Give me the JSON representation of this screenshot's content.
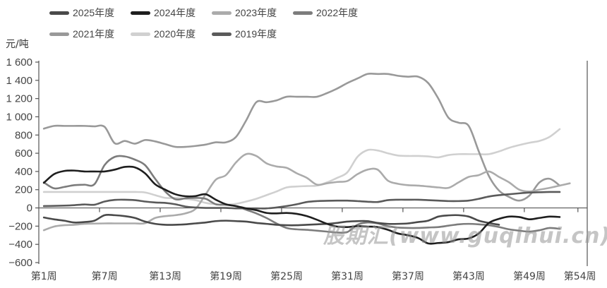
{
  "chart_data": {
    "type": "line",
    "title": "",
    "xlabel": "",
    "ylabel": "元/吨",
    "ylim": [
      -600,
      1600
    ],
    "yticks": [
      1600,
      1400,
      1200,
      1000,
      800,
      600,
      400,
      200,
      0,
      -200,
      -400,
      -600
    ],
    "ytick_labels": [
      "1 600",
      "1 400",
      "1 200",
      "1 000",
      "800",
      "600",
      "400",
      "200",
      "0",
      "−200",
      "−400",
      "−600"
    ],
    "xtick_weeks": [
      1,
      7,
      13,
      19,
      25,
      31,
      37,
      43,
      49,
      54
    ],
    "xtick_labels": [
      "第1周",
      "第7周",
      "第13周",
      "第19周",
      "第25周",
      "第31周",
      "第37周",
      "第43周",
      "第49周",
      "第54周"
    ],
    "grid": false,
    "legend_position": "top",
    "series": [
      {
        "name": "2025年度",
        "color": "#4a4a4a",
        "values": [
          -105,
          -125,
          -140,
          -160,
          -155,
          -140,
          -80,
          -80,
          -90,
          -110,
          -150,
          -175,
          -185,
          -185,
          -180,
          -170,
          -160,
          -145,
          -140,
          -145,
          -150,
          -165,
          -175,
          -185,
          -190,
          -190,
          -185,
          -180,
          -175,
          -165,
          -150,
          -145,
          -145,
          -165,
          -175,
          -175,
          -170,
          -155,
          -140,
          -95,
          -82,
          -80,
          -95,
          -140,
          -165,
          -185
        ]
      },
      {
        "name": "2024年度",
        "color": "#1e1e1e",
        "values": [
          275,
          370,
          405,
          410,
          400,
          400,
          400,
          420,
          450,
          445,
          380,
          260,
          200,
          150,
          128,
          130,
          150,
          90,
          40,
          20,
          -5,
          -25,
          -55,
          -60,
          -55,
          -65,
          -90,
          -130,
          -175,
          -205,
          -210,
          -200,
          -205,
          -210,
          -240,
          -280,
          -300,
          -330,
          -390,
          -385,
          -375,
          -345,
          -335,
          -280,
          -165,
          -120,
          -95,
          -100,
          -125,
          -110,
          -95,
          -100
        ]
      },
      {
        "name": "2023年度",
        "color": "#ababab",
        "values": [
          -245,
          -205,
          -190,
          -185,
          -175,
          -172,
          -170,
          -170,
          -170,
          -170,
          -168,
          -110,
          -90,
          -80,
          -60,
          -10,
          150,
          310,
          360,
          500,
          590,
          570,
          490,
          455,
          440,
          380,
          330,
          255,
          270,
          285,
          295,
          370,
          420,
          420,
          300,
          265,
          250,
          245,
          235,
          225,
          220,
          280,
          340,
          360,
          400,
          340,
          280,
          200,
          180,
          200,
          220,
          245,
          270
        ]
      },
      {
        "name": "2022年度",
        "color": "#7c7c7c",
        "values": [
          280,
          215,
          230,
          250,
          255,
          260,
          470,
          560,
          565,
          530,
          470,
          320,
          180,
          95,
          105,
          110,
          100,
          40,
          35,
          20,
          -20,
          -60,
          -110,
          -170,
          -220,
          -235,
          -240,
          -250,
          -260,
          -270,
          -265,
          -185,
          -160,
          -170,
          -200,
          -215,
          -220,
          -220,
          -215,
          -210,
          -195,
          -180,
          -175,
          -180,
          -190,
          -210,
          -235,
          -250,
          -260,
          -245,
          -220,
          -230
        ]
      },
      {
        "name": "2021年度",
        "color": "#999999",
        "values": [
          870,
          900,
          900,
          900,
          900,
          895,
          890,
          710,
          735,
          705,
          745,
          730,
          700,
          670,
          670,
          680,
          695,
          720,
          720,
          780,
          960,
          1160,
          1160,
          1180,
          1220,
          1220,
          1220,
          1220,
          1260,
          1310,
          1370,
          1420,
          1470,
          1470,
          1470,
          1450,
          1440,
          1440,
          1370,
          1200,
          990,
          935,
          900,
          620,
          350,
          190,
          120,
          80,
          135,
          280,
          320,
          245
        ]
      },
      {
        "name": "2020年度",
        "color": "#d0d0d0",
        "values": [
          175,
          175,
          175,
          175,
          175,
          175,
          175,
          175,
          175,
          175,
          170,
          140,
          110,
          110,
          100,
          85,
          55,
          40,
          35,
          45,
          70,
          100,
          140,
          180,
          225,
          235,
          240,
          245,
          280,
          330,
          390,
          560,
          635,
          630,
          600,
          575,
          570,
          570,
          565,
          555,
          580,
          590,
          590,
          590,
          590,
          620,
          660,
          690,
          715,
          735,
          780,
          865
        ]
      },
      {
        "name": "2019年度",
        "color": "#5a5a5a",
        "values": [
          20,
          22,
          25,
          30,
          38,
          35,
          70,
          88,
          90,
          85,
          70,
          60,
          55,
          40,
          15,
          5,
          0,
          0,
          0,
          -5,
          -5,
          -5,
          -5,
          5,
          20,
          40,
          65,
          75,
          78,
          80,
          80,
          75,
          68,
          65,
          85,
          90,
          90,
          90,
          85,
          80,
          75,
          75,
          80,
          100,
          125,
          140,
          150,
          160,
          168,
          172,
          175,
          175
        ]
      }
    ]
  },
  "watermark": "股期汇(www.guqihui.cn)"
}
